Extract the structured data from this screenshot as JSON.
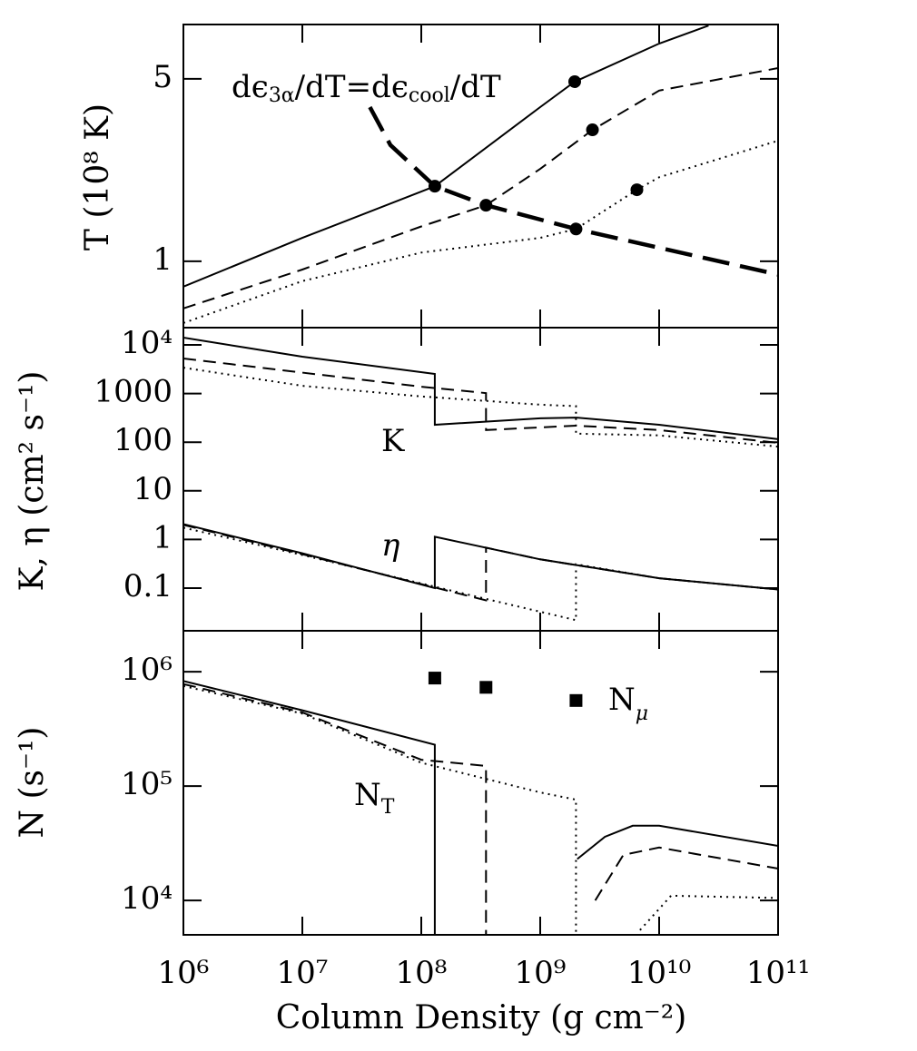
{
  "chart_data": [
    {
      "type": "line",
      "y_label": "T (10⁸ K)",
      "xlim": [
        1000000,
        100000000000
      ],
      "ylim": [
        0.557,
        8.08
      ],
      "log_x": true,
      "log_y": true,
      "yticks": [
        1,
        5
      ],
      "annotations": [
        [
          "dϵ",
          "3α",
          "/dT=dϵ",
          "cool",
          "/dT"
        ]
      ],
      "series": [
        {
          "color": "#000000",
          "line": "solid",
          "x": [
            1000000,
            10000000,
            100000000,
            130000000,
            1000000000,
            1950000000,
            10000000000,
            26000000000
          ],
          "values": [
            0.8,
            1.23,
            1.85,
            1.94,
            3.9,
            4.88,
            6.83,
            8.0
          ]
        },
        {
          "color": "#000000",
          "line": "dashed",
          "x": [
            1000000,
            10000000,
            100000000,
            350000000,
            1000000000,
            2750000000,
            10000000000,
            100000000000
          ],
          "values": [
            0.66,
            0.93,
            1.36,
            1.64,
            2.26,
            3.19,
            4.51,
            5.5
          ]
        },
        {
          "color": "#000000",
          "line": "dotted",
          "x": [
            1000000,
            10000000,
            100000000,
            1000000000,
            2000000000,
            6500000000,
            10000000000,
            100000000000
          ],
          "values": [
            0.58,
            0.84,
            1.08,
            1.23,
            1.33,
            1.88,
            2.1,
            2.9
          ]
        },
        {
          "color": "#000000",
          "line": "long-dashed",
          "x": [
            37000000,
            55000000,
            130000000,
            350000000,
            2000000000,
            100000000000
          ],
          "values": [
            3.9,
            2.79,
            1.94,
            1.64,
            1.33,
            0.89
          ]
        },
        {
          "color": "#000000",
          "marker": "circle",
          "x": [
            130000000,
            350000000,
            2000000000,
            1950000000,
            2750000000,
            6500000000
          ],
          "values": [
            1.94,
            1.64,
            1.33,
            4.88,
            3.19,
            1.88
          ]
        }
      ]
    },
    {
      "type": "line",
      "y_label": "K, η (cm² s⁻¹)",
      "xlim": [
        1000000,
        100000000000
      ],
      "ylim": [
        0.0133,
        22600
      ],
      "log_x": true,
      "log_y": true,
      "yticks": [
        0.1,
        1,
        10,
        100,
        1000,
        {
          "value": 10000,
          "label": "10⁴"
        }
      ],
      "annotations": [
        "K",
        "η"
      ],
      "series": [
        {
          "color": "#000000",
          "line": "solid",
          "x": [
            1000000,
            10000000,
            130000000,
            130000000,
            1000000000,
            2000000000,
            10000000000,
            100000000000
          ],
          "values": [
            14100,
            5720,
            2530,
            228,
            309,
            320,
            228,
            115
          ]
        },
        {
          "color": "#000000",
          "line": "dashed",
          "x": [
            1000000,
            100000000,
            350000000,
            350000000,
            2000000000,
            10000000000,
            100000000000
          ],
          "values": [
            5250,
            1380,
            1020,
            178,
            219,
            178,
            97
          ]
        },
        {
          "color": "#000000",
          "line": "dotted",
          "x": [
            1000000,
            10000000,
            100000000,
            1000000000,
            2000000000,
            2000000000,
            10000000000,
            100000000000
          ],
          "values": [
            3400,
            1440,
            870,
            590,
            550,
            150,
            138,
            81
          ]
        },
        {
          "color": "#000000",
          "line": "solid",
          "x": [
            1000000,
            10000000,
            130000000,
            130000000,
            1000000000,
            10000000000,
            100000000000
          ],
          "values": [
            2.07,
            0.52,
            0.1,
            1.14,
            0.39,
            0.16,
            0.094
          ]
        },
        {
          "color": "#000000",
          "line": "dashed",
          "x": [
            1000000,
            10000000,
            350000000,
            350000000,
            1000000000,
            10000000000,
            100000000000
          ],
          "values": [
            2.0,
            0.5,
            0.056,
            0.68,
            0.39,
            0.16,
            0.094
          ]
        },
        {
          "color": "#000000",
          "line": "dotted",
          "x": [
            1000000,
            10000000,
            350000000,
            2000000000,
            2000000000,
            10000000000,
            100000000000
          ],
          "values": [
            1.75,
            0.48,
            0.06,
            0.022,
            0.31,
            0.16,
            0.094
          ]
        }
      ]
    },
    {
      "type": "line",
      "y_label": "N (s⁻¹)",
      "x_label": "Column Density (g cm⁻²)",
      "xlim": [
        1000000,
        100000000000
      ],
      "ylim": [
        5000,
        2280000
      ],
      "log_x": true,
      "log_y": true,
      "xticks": [
        {
          "value": 1000000,
          "label": "10⁶"
        },
        {
          "value": 10000000,
          "label": "10⁷"
        },
        {
          "value": 100000000,
          "label": "10⁸"
        },
        {
          "value": 1000000000,
          "label": "10⁹"
        },
        {
          "value": 10000000000,
          "label": "10¹⁰"
        },
        {
          "value": 100000000000,
          "label": "10¹¹"
        }
      ],
      "yticks": [
        {
          "value": 10000,
          "label": "10⁴"
        },
        {
          "value": 100000,
          "label": "10⁵"
        },
        {
          "value": 1000000,
          "label": "10⁶"
        }
      ],
      "annotations": [
        [
          "N",
          "T"
        ],
        [
          "N",
          "μ"
        ]
      ],
      "series": [
        {
          "color": "#000000",
          "line": "solid",
          "x": [
            1000000,
            10000000,
            130000000,
            130000000,
            2000000000,
            2050000000,
            3500000000,
            6000000000,
            10000000000,
            100000000000
          ],
          "values": [
            830000,
            460000,
            230000,
            5000,
            null,
            23000,
            36000,
            45000,
            45000,
            30000
          ]
        },
        {
          "color": "#000000",
          "line": "dashed",
          "x": [
            1000000,
            10000000,
            100000000,
            350000000,
            350000000,
            2000000000,
            2900000000,
            5000000000,
            10000000000,
            100000000000
          ],
          "values": [
            780000,
            440000,
            170000,
            150000,
            5000,
            null,
            10000,
            25000,
            29000,
            19000
          ]
        },
        {
          "color": "#000000",
          "line": "dotted",
          "x": [
            1000000,
            10000000,
            100000000,
            1000000000,
            2000000000,
            2000000000,
            5000000000,
            6900000000,
            12600000000,
            100000000000
          ],
          "values": [
            750000,
            430000,
            160000,
            88000,
            76000,
            5000,
            null,
            5500,
            11000,
            10500
          ]
        },
        {
          "color": "#000000",
          "marker": "square",
          "x": [
            130000000,
            350000000,
            2000000000
          ],
          "values": [
            880000,
            730000,
            560000
          ]
        }
      ]
    }
  ]
}
